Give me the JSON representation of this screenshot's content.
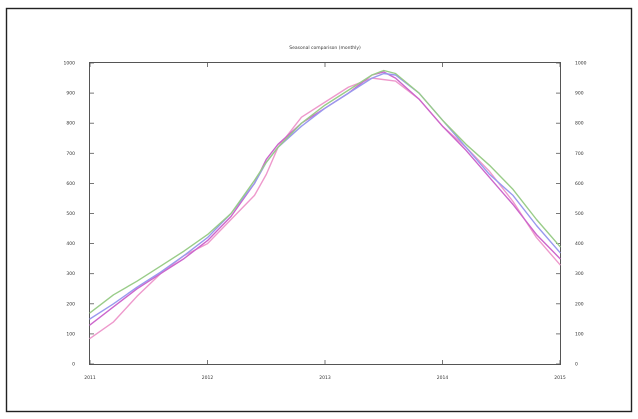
{
  "chart_data": {
    "type": "line",
    "title": "Seasonal comparison (monthly)",
    "xlabel": "",
    "ylabel": "",
    "xlim": [
      0,
      4
    ],
    "ylim": [
      0,
      1000
    ],
    "x_ticks": [
      0,
      1,
      2,
      3,
      4
    ],
    "x_tick_labels": [
      "2011",
      "2012",
      "2013",
      "2014",
      "2015"
    ],
    "y_ticks": [
      0,
      100,
      200,
      300,
      400,
      500,
      600,
      700,
      800,
      900,
      1000
    ],
    "y_tick_labels": [
      "0",
      "100",
      "200",
      "300",
      "400",
      "500",
      "600",
      "700",
      "800",
      "900",
      "1000"
    ],
    "grid": false,
    "legend": "none",
    "series": [
      {
        "color": "#ee99cc",
        "points": [
          [
            0,
            85
          ],
          [
            0.2,
            140
          ],
          [
            0.4,
            225
          ],
          [
            0.6,
            300
          ],
          [
            0.8,
            360
          ],
          [
            1.0,
            400
          ],
          [
            1.2,
            480
          ],
          [
            1.4,
            560
          ],
          [
            1.5,
            630
          ],
          [
            1.6,
            720
          ],
          [
            1.8,
            820
          ],
          [
            2.0,
            870
          ],
          [
            2.2,
            920
          ],
          [
            2.4,
            950
          ],
          [
            2.6,
            940
          ],
          [
            2.8,
            880
          ],
          [
            3.0,
            790
          ],
          [
            3.2,
            720
          ],
          [
            3.4,
            640
          ],
          [
            3.6,
            540
          ],
          [
            3.8,
            420
          ],
          [
            4.0,
            330
          ]
        ]
      },
      {
        "color": "#cc66cc",
        "points": [
          [
            0,
            130
          ],
          [
            0.2,
            190
          ],
          [
            0.4,
            250
          ],
          [
            0.6,
            300
          ],
          [
            0.8,
            350
          ],
          [
            1.0,
            410
          ],
          [
            1.2,
            490
          ],
          [
            1.4,
            600
          ],
          [
            1.5,
            680
          ],
          [
            1.6,
            730
          ],
          [
            1.8,
            800
          ],
          [
            2.0,
            850
          ],
          [
            2.2,
            900
          ],
          [
            2.4,
            960
          ],
          [
            2.5,
            970
          ],
          [
            2.6,
            950
          ],
          [
            2.8,
            880
          ],
          [
            3.0,
            790
          ],
          [
            3.2,
            710
          ],
          [
            3.4,
            620
          ],
          [
            3.6,
            530
          ],
          [
            3.8,
            430
          ],
          [
            4.0,
            350
          ]
        ]
      },
      {
        "color": "#9999ee",
        "points": [
          [
            0,
            150
          ],
          [
            0.2,
            200
          ],
          [
            0.4,
            255
          ],
          [
            0.6,
            305
          ],
          [
            0.8,
            360
          ],
          [
            1.0,
            420
          ],
          [
            1.2,
            500
          ],
          [
            1.4,
            600
          ],
          [
            1.5,
            670
          ],
          [
            1.6,
            720
          ],
          [
            1.8,
            790
          ],
          [
            2.0,
            850
          ],
          [
            2.2,
            900
          ],
          [
            2.4,
            950
          ],
          [
            2.5,
            965
          ],
          [
            2.6,
            960
          ],
          [
            2.8,
            900
          ],
          [
            3.0,
            810
          ],
          [
            3.2,
            720
          ],
          [
            3.4,
            630
          ],
          [
            3.6,
            560
          ],
          [
            3.8,
            460
          ],
          [
            4.0,
            370
          ]
        ]
      },
      {
        "color": "#99cc88",
        "points": [
          [
            0,
            170
          ],
          [
            0.2,
            230
          ],
          [
            0.4,
            275
          ],
          [
            0.6,
            325
          ],
          [
            0.8,
            375
          ],
          [
            1.0,
            430
          ],
          [
            1.2,
            500
          ],
          [
            1.4,
            610
          ],
          [
            1.5,
            670
          ],
          [
            1.6,
            720
          ],
          [
            1.8,
            800
          ],
          [
            2.0,
            860
          ],
          [
            2.2,
            910
          ],
          [
            2.4,
            960
          ],
          [
            2.5,
            975
          ],
          [
            2.6,
            965
          ],
          [
            2.8,
            900
          ],
          [
            3.0,
            810
          ],
          [
            3.2,
            730
          ],
          [
            3.4,
            660
          ],
          [
            3.6,
            580
          ],
          [
            3.8,
            480
          ],
          [
            4.0,
            390
          ]
        ]
      }
    ]
  }
}
